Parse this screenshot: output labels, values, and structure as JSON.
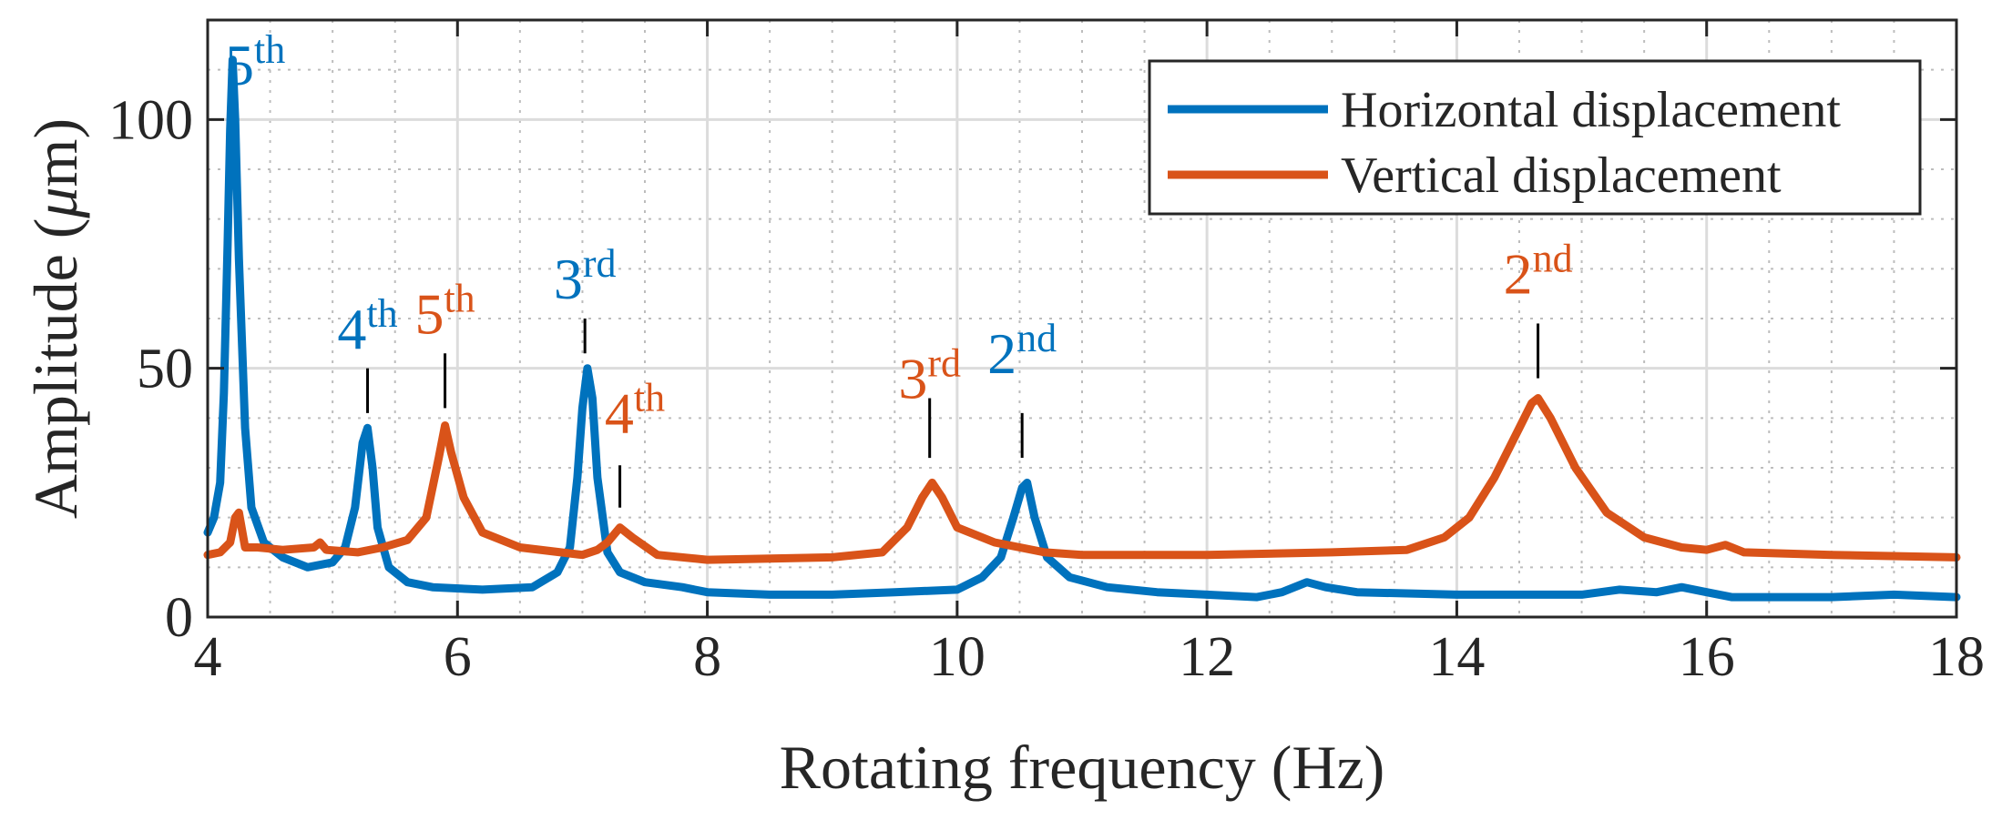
{
  "chart_data": {
    "type": "line",
    "xlabel": "Rotating frequency (Hz)",
    "ylabel_prefix": "Amplitude (",
    "ylabel_mu": "μ",
    "ylabel_suffix": "m)",
    "xlim": [
      4,
      18
    ],
    "ylim": [
      0,
      120
    ],
    "xticks": [
      4,
      6,
      8,
      10,
      12,
      14,
      16,
      18
    ],
    "yticks": [
      0,
      50,
      100
    ],
    "grid": true,
    "minor_grid": true,
    "legend_position": "top-right",
    "series": [
      {
        "name": "Horizontal displacement",
        "color": "#0072BD",
        "points": [
          [
            4.0,
            17
          ],
          [
            4.05,
            20
          ],
          [
            4.1,
            27
          ],
          [
            4.13,
            45
          ],
          [
            4.16,
            75
          ],
          [
            4.18,
            98
          ],
          [
            4.2,
            112
          ],
          [
            4.22,
            100
          ],
          [
            4.25,
            72
          ],
          [
            4.3,
            38
          ],
          [
            4.35,
            22
          ],
          [
            4.45,
            15
          ],
          [
            4.6,
            12
          ],
          [
            4.8,
            10
          ],
          [
            5.0,
            11
          ],
          [
            5.1,
            14
          ],
          [
            5.18,
            22
          ],
          [
            5.24,
            35
          ],
          [
            5.28,
            38
          ],
          [
            5.32,
            30
          ],
          [
            5.36,
            18
          ],
          [
            5.45,
            10
          ],
          [
            5.6,
            7
          ],
          [
            5.8,
            6
          ],
          [
            6.2,
            5.5
          ],
          [
            6.6,
            6
          ],
          [
            6.8,
            9
          ],
          [
            6.9,
            14
          ],
          [
            6.96,
            28
          ],
          [
            7.0,
            42
          ],
          [
            7.04,
            50
          ],
          [
            7.08,
            44
          ],
          [
            7.12,
            28
          ],
          [
            7.2,
            13
          ],
          [
            7.3,
            9
          ],
          [
            7.5,
            7
          ],
          [
            7.8,
            6
          ],
          [
            8.0,
            5
          ],
          [
            8.5,
            4.5
          ],
          [
            9.0,
            4.5
          ],
          [
            9.5,
            5
          ],
          [
            10.0,
            5.5
          ],
          [
            10.2,
            8
          ],
          [
            10.35,
            12
          ],
          [
            10.45,
            20
          ],
          [
            10.52,
            26
          ],
          [
            10.56,
            27
          ],
          [
            10.62,
            20
          ],
          [
            10.72,
            12
          ],
          [
            10.9,
            8
          ],
          [
            11.2,
            6
          ],
          [
            11.6,
            5
          ],
          [
            12.0,
            4.5
          ],
          [
            12.4,
            4
          ],
          [
            12.6,
            5
          ],
          [
            12.8,
            7
          ],
          [
            12.95,
            6
          ],
          [
            13.2,
            5
          ],
          [
            14.0,
            4.5
          ],
          [
            15.0,
            4.5
          ],
          [
            15.3,
            5.5
          ],
          [
            15.6,
            5
          ],
          [
            15.8,
            6
          ],
          [
            16.0,
            5
          ],
          [
            16.2,
            4
          ],
          [
            17.0,
            4
          ],
          [
            17.5,
            4.5
          ],
          [
            18.0,
            4
          ]
        ]
      },
      {
        "name": "Vertical displacement",
        "color": "#D95319",
        "points": [
          [
            4.0,
            12.5
          ],
          [
            4.1,
            13
          ],
          [
            4.18,
            15
          ],
          [
            4.22,
            20
          ],
          [
            4.25,
            21
          ],
          [
            4.3,
            14
          ],
          [
            4.4,
            14
          ],
          [
            4.6,
            13.5
          ],
          [
            4.85,
            14
          ],
          [
            4.9,
            15
          ],
          [
            4.95,
            13.5
          ],
          [
            5.2,
            13
          ],
          [
            5.4,
            14
          ],
          [
            5.6,
            15.5
          ],
          [
            5.75,
            20
          ],
          [
            5.85,
            32
          ],
          [
            5.9,
            38.5
          ],
          [
            5.95,
            33
          ],
          [
            6.05,
            24
          ],
          [
            6.2,
            17
          ],
          [
            6.5,
            14
          ],
          [
            7.0,
            12.5
          ],
          [
            7.12,
            13.5
          ],
          [
            7.2,
            15
          ],
          [
            7.3,
            18
          ],
          [
            7.4,
            16
          ],
          [
            7.6,
            12.5
          ],
          [
            8.0,
            11.5
          ],
          [
            9.0,
            12
          ],
          [
            9.4,
            13
          ],
          [
            9.6,
            18
          ],
          [
            9.72,
            24
          ],
          [
            9.8,
            27
          ],
          [
            9.88,
            24
          ],
          [
            10.0,
            18
          ],
          [
            10.3,
            15
          ],
          [
            10.7,
            13
          ],
          [
            11.0,
            12.5
          ],
          [
            12.0,
            12.5
          ],
          [
            13.0,
            13
          ],
          [
            13.6,
            13.5
          ],
          [
            13.9,
            16
          ],
          [
            14.1,
            20
          ],
          [
            14.3,
            28
          ],
          [
            14.5,
            38
          ],
          [
            14.6,
            43
          ],
          [
            14.65,
            44
          ],
          [
            14.75,
            40
          ],
          [
            14.95,
            30
          ],
          [
            15.2,
            21
          ],
          [
            15.5,
            16
          ],
          [
            15.8,
            14
          ],
          [
            16.0,
            13.5
          ],
          [
            16.15,
            14.5
          ],
          [
            16.3,
            13
          ],
          [
            17.0,
            12.5
          ],
          [
            18.0,
            12
          ]
        ]
      }
    ],
    "annotations": [
      {
        "id": "h-5th",
        "series": 0,
        "base": "5",
        "sup": "th",
        "x": 4.38,
        "y": 107,
        "line": null
      },
      {
        "id": "h-4th",
        "series": 0,
        "base": "4",
        "sup": "th",
        "x": 5.28,
        "y": 54,
        "line": [
          5.28,
          50,
          5.28,
          41
        ]
      },
      {
        "id": "v-5th",
        "series": 1,
        "base": "5",
        "sup": "th",
        "x": 5.9,
        "y": 57,
        "line": [
          5.9,
          53,
          5.9,
          42
        ]
      },
      {
        "id": "h-3rd",
        "series": 0,
        "base": "3",
        "sup": "rd",
        "x": 7.02,
        "y": 64,
        "line": [
          7.02,
          60,
          7.02,
          53
        ]
      },
      {
        "id": "v-4th",
        "series": 1,
        "base": "4",
        "sup": "th",
        "x": 7.42,
        "y": 37,
        "line": [
          7.3,
          30.5,
          7.3,
          22
        ]
      },
      {
        "id": "v-3rd",
        "series": 1,
        "base": "3",
        "sup": "rd",
        "x": 9.78,
        "y": 44,
        "line": [
          9.78,
          44,
          9.78,
          32
        ]
      },
      {
        "id": "h-2nd",
        "series": 0,
        "base": "2",
        "sup": "nd",
        "x": 10.52,
        "y": 49,
        "line": [
          10.52,
          41,
          10.52,
          32
        ]
      },
      {
        "id": "v-2nd",
        "series": 1,
        "base": "2",
        "sup": "nd",
        "x": 14.65,
        "y": 65,
        "line": [
          14.65,
          59,
          14.65,
          48
        ]
      }
    ]
  }
}
